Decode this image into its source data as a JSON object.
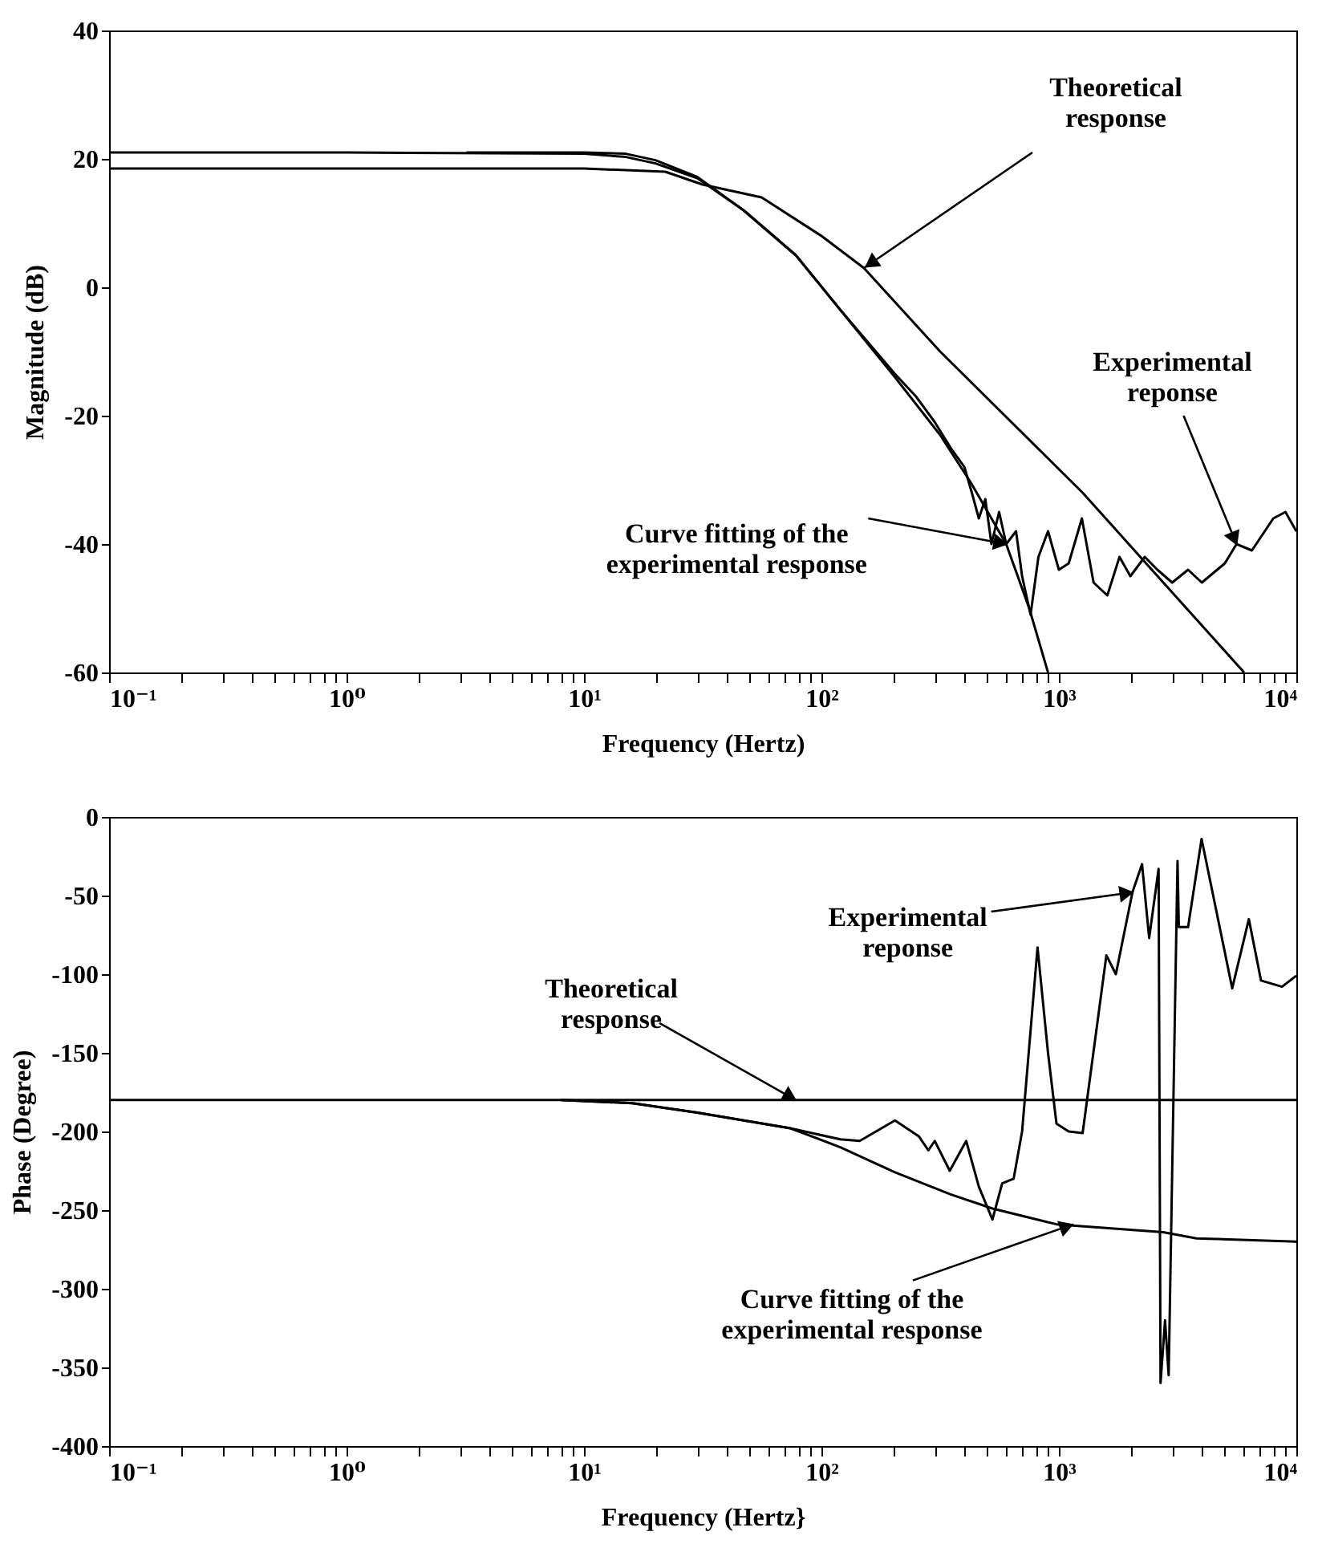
{
  "chart_data": [
    {
      "type": "line",
      "xlabel": "Frequency (Hertz)",
      "ylabel": "Magnitude (dB)",
      "log": "x",
      "grid": false,
      "line_style": "solid",
      "xlim": [
        0.1,
        10000
      ],
      "ylim": [
        -60,
        40
      ],
      "xticks": [
        {
          "value": 0.1,
          "label": "10⁻¹"
        },
        {
          "value": 0.2,
          "label": null
        },
        {
          "value": 0.3,
          "label": null
        },
        {
          "value": 0.4,
          "label": null
        },
        {
          "value": 0.5,
          "label": null
        },
        {
          "value": 0.6,
          "label": null
        },
        {
          "value": 0.7,
          "label": null
        },
        {
          "value": 0.8,
          "label": null
        },
        {
          "value": 0.9,
          "label": null
        },
        {
          "value": 1,
          "label": "10⁰"
        },
        {
          "value": 2,
          "label": null
        },
        {
          "value": 3,
          "label": null
        },
        {
          "value": 4,
          "label": null
        },
        {
          "value": 5,
          "label": null
        },
        {
          "value": 6,
          "label": null
        },
        {
          "value": 7,
          "label": null
        },
        {
          "value": 8,
          "label": null
        },
        {
          "value": 9,
          "label": null
        },
        {
          "value": 10,
          "label": "10¹"
        },
        {
          "value": 20,
          "label": null
        },
        {
          "value": 30,
          "label": null
        },
        {
          "value": 40,
          "label": null
        },
        {
          "value": 50,
          "label": null
        },
        {
          "value": 60,
          "label": null
        },
        {
          "value": 70,
          "label": null
        },
        {
          "value": 80,
          "label": null
        },
        {
          "value": 90,
          "label": null
        },
        {
          "value": 100,
          "label": "10²"
        },
        {
          "value": 200,
          "label": null
        },
        {
          "value": 300,
          "label": null
        },
        {
          "value": 400,
          "label": null
        },
        {
          "value": 500,
          "label": null
        },
        {
          "value": 600,
          "label": null
        },
        {
          "value": 700,
          "label": null
        },
        {
          "value": 800,
          "label": null
        },
        {
          "value": 900,
          "label": null
        },
        {
          "value": 1000,
          "label": "10³"
        },
        {
          "value": 2000,
          "label": null
        },
        {
          "value": 3000,
          "label": null
        },
        {
          "value": 4000,
          "label": null
        },
        {
          "value": 5000,
          "label": null
        },
        {
          "value": 6000,
          "label": null
        },
        {
          "value": 7000,
          "label": null
        },
        {
          "value": 8000,
          "label": null
        },
        {
          "value": 9000,
          "label": null
        },
        {
          "value": 10000,
          "label": "10⁴"
        }
      ],
      "yticks": [
        -60,
        -40,
        -20,
        0,
        20,
        40
      ],
      "series": [
        {
          "color": "#000000",
          "x": [
            0.1,
            1,
            10,
            22,
            31.6,
            56,
            100,
            151,
            316,
            1259,
            6026
          ],
          "values": [
            18.5,
            18.5,
            18.5,
            18,
            16,
            14,
            8,
            3,
            -10,
            -32,
            -60
          ]
        },
        {
          "color": "#000000",
          "x": [
            0.1,
            1,
            10,
            15,
            20,
            30,
            47,
            78,
            120,
            204,
            316,
            427,
            600,
            750,
            900
          ],
          "values": [
            21,
            21,
            20.8,
            20.3,
            19.3,
            17,
            12,
            5,
            -3.5,
            -14,
            -23,
            -30.5,
            -40,
            -50,
            -60
          ]
        },
        {
          "color": "#000000",
          "x": [
            3.2,
            10,
            15,
            20,
            30,
            47,
            78,
            120,
            204,
            250,
            300,
            350,
            400,
            430,
            460,
            490,
            520,
            560,
            600,
            660,
            700,
            760,
            820,
            900,
            1000,
            1100,
            1250,
            1400,
            1600,
            1800,
            2000,
            2300,
            2600,
            3000,
            3500,
            4000,
            5000,
            5600,
            6500,
            8000,
            9000,
            10000
          ],
          "values": [
            21,
            21,
            20.8,
            19.8,
            17.2,
            12,
            5,
            -3.5,
            -13.5,
            -17,
            -21,
            -25,
            -28,
            -32,
            -36,
            -33,
            -40,
            -35,
            -40,
            -38,
            -45,
            -51,
            -42,
            -38,
            -44,
            -43,
            -36,
            -46,
            -48,
            -42,
            -45,
            -42,
            -44,
            -46,
            -44,
            -46,
            -43,
            -40,
            -41,
            -36,
            -35,
            -38
          ]
        }
      ],
      "annotations": [
        {
          "text": "Theoretical\nresponse",
          "x": 151,
          "y": 3
        },
        {
          "text": "Experimental\nreponse",
          "x": 5600,
          "y": -40
        },
        {
          "text": "Curve fitting of the\nexperimental response",
          "x": 600,
          "y": -40
        }
      ]
    },
    {
      "type": "line",
      "xlabel": "Frequency (Hertz}",
      "ylabel": "Phase (Degree)",
      "log": "x",
      "grid": false,
      "line_style": "solid",
      "xlim": [
        0.1,
        10000
      ],
      "ylim": [
        -400,
        0
      ],
      "xticks": [
        {
          "value": 0.1,
          "label": "10⁻¹"
        },
        {
          "value": 0.2,
          "label": null
        },
        {
          "value": 0.3,
          "label": null
        },
        {
          "value": 0.4,
          "label": null
        },
        {
          "value": 0.5,
          "label": null
        },
        {
          "value": 0.6,
          "label": null
        },
        {
          "value": 0.7,
          "label": null
        },
        {
          "value": 0.8,
          "label": null
        },
        {
          "value": 0.9,
          "label": null
        },
        {
          "value": 1,
          "label": "10⁰"
        },
        {
          "value": 2,
          "label": null
        },
        {
          "value": 3,
          "label": null
        },
        {
          "value": 4,
          "label": null
        },
        {
          "value": 5,
          "label": null
        },
        {
          "value": 6,
          "label": null
        },
        {
          "value": 7,
          "label": null
        },
        {
          "value": 8,
          "label": null
        },
        {
          "value": 9,
          "label": null
        },
        {
          "value": 10,
          "label": "10¹"
        },
        {
          "value": 20,
          "label": null
        },
        {
          "value": 30,
          "label": null
        },
        {
          "value": 40,
          "label": null
        },
        {
          "value": 50,
          "label": null
        },
        {
          "value": 60,
          "label": null
        },
        {
          "value": 70,
          "label": null
        },
        {
          "value": 80,
          "label": null
        },
        {
          "value": 90,
          "label": null
        },
        {
          "value": 100,
          "label": "10²"
        },
        {
          "value": 200,
          "label": null
        },
        {
          "value": 300,
          "label": null
        },
        {
          "value": 400,
          "label": null
        },
        {
          "value": 500,
          "label": null
        },
        {
          "value": 600,
          "label": null
        },
        {
          "value": 700,
          "label": null
        },
        {
          "value": 800,
          "label": null
        },
        {
          "value": 900,
          "label": null
        },
        {
          "value": 1000,
          "label": "10³"
        },
        {
          "value": 2000,
          "label": null
        },
        {
          "value": 3000,
          "label": null
        },
        {
          "value": 4000,
          "label": null
        },
        {
          "value": 5000,
          "label": null
        },
        {
          "value": 6000,
          "label": null
        },
        {
          "value": 7000,
          "label": null
        },
        {
          "value": 8000,
          "label": null
        },
        {
          "value": 9000,
          "label": null
        },
        {
          "value": 10000,
          "label": "10⁴"
        }
      ],
      "yticks": [
        -400,
        -350,
        -300,
        -250,
        -200,
        -150,
        -100,
        -50,
        0
      ],
      "series": [
        {
          "color": "#000000",
          "x": [
            0.1,
            10000
          ],
          "values": [
            -180,
            -180
          ]
        },
        {
          "color": "#000000",
          "x": [
            8,
            16,
            30,
            74,
            120,
            204,
            350,
            525,
            977,
            2750,
            3800,
            10000
          ],
          "values": [
            -180,
            -182,
            -188,
            -198,
            -210,
            -226,
            -240,
            -249,
            -259,
            -264,
            -268,
            -270
          ]
        },
        {
          "color": "#000000",
          "x": [
            8,
            16,
            30,
            74,
            120,
            145,
            204,
            257,
            282,
            300,
            347,
            407,
            460,
            525,
            577,
            645,
            700,
            813,
            900,
            977,
            1100,
            1259,
            1585,
            1738,
            2040,
            2240,
            2400,
            2630,
            2680,
            2800,
            2900,
            3160,
            3200,
            3500,
            3990,
            5370,
            6310,
            7100,
            8700,
            10000
          ],
          "values": [
            -180,
            -182,
            -188,
            -198,
            -205,
            -206,
            -193,
            -203,
            -212,
            -206,
            -225,
            -206,
            -235,
            -256,
            -233,
            -230,
            -200,
            -83,
            -150,
            -195,
            -200,
            -201,
            -88,
            -100,
            -48,
            -30,
            -77,
            -33,
            -360,
            -320,
            -355,
            -28,
            -70,
            -70,
            -14,
            -109,
            -65,
            -104,
            -108,
            -101
          ]
        }
      ],
      "annotations": [
        {
          "text": "Experimental\nreponse",
          "x": 2040,
          "y": -48
        },
        {
          "text": "Theoretical\nresponse",
          "x": 78,
          "y": -180
        },
        {
          "text": "Curve fitting of the\nexperimental response",
          "x": 1150,
          "y": -259
        }
      ]
    }
  ]
}
